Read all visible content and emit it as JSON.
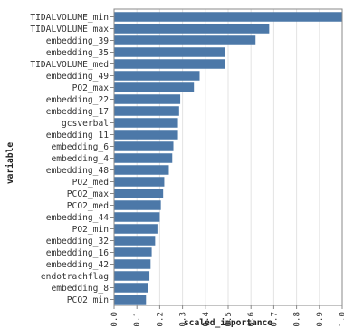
{
  "chart_data": {
    "type": "bar",
    "orientation": "horizontal",
    "title": "",
    "xlabel": "scaled_importance",
    "ylabel": "variable",
    "xlim": [
      0,
      1.0
    ],
    "xticks": [
      "0.0",
      "0.1",
      "0.2",
      "0.3",
      "0.4",
      "0.5",
      "0.6",
      "0.7",
      "0.8",
      "0.9",
      "1.0"
    ],
    "grid": true,
    "bar_color": "#4c78a8",
    "categories": [
      "TIDALVOLUME_min",
      "TIDALVOLUME_max",
      "embedding_39",
      "embedding_35",
      "TIDALVOLUME_med",
      "embedding_49",
      "PO2_max",
      "embedding_22",
      "embedding_17",
      "gcsverbal",
      "embedding_11",
      "embedding_6",
      "embedding_4",
      "embedding_48",
      "PO2_med",
      "PCO2_max",
      "PCO2_med",
      "embedding_44",
      "PO2_min",
      "embedding_32",
      "embedding_16",
      "embedding_42",
      "endotrachflag",
      "embedding_8",
      "PCO2_min"
    ],
    "values": [
      1.0,
      0.68,
      0.62,
      0.485,
      0.485,
      0.375,
      0.35,
      0.29,
      0.285,
      0.28,
      0.28,
      0.26,
      0.255,
      0.24,
      0.22,
      0.215,
      0.205,
      0.2,
      0.19,
      0.18,
      0.165,
      0.16,
      0.155,
      0.15,
      0.14
    ]
  }
}
